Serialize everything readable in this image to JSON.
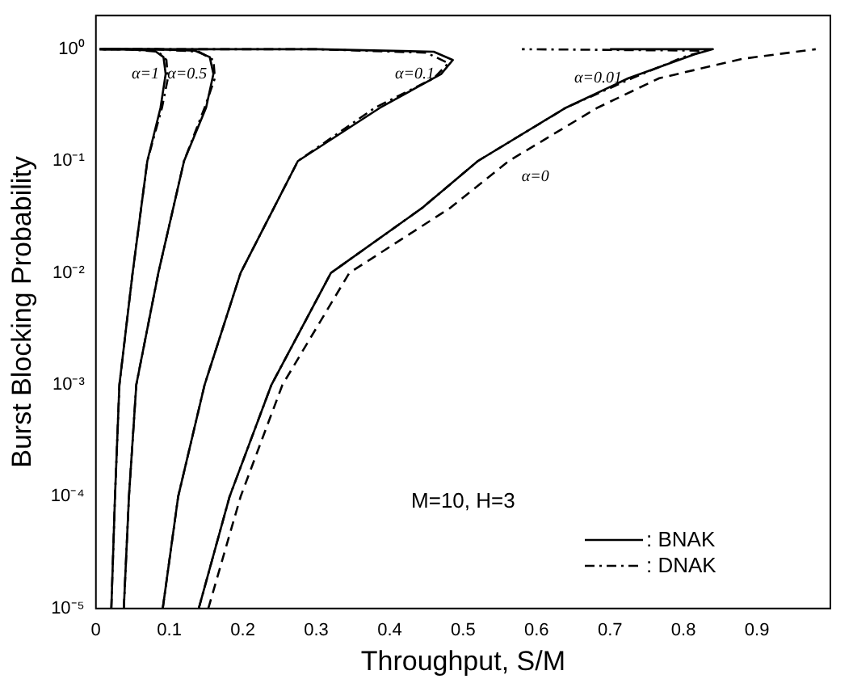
{
  "chart_data": {
    "type": "line",
    "xlabel": "Throughput, S/M",
    "ylabel": "Burst Blocking Probability",
    "log": "y",
    "xlim": [
      0,
      1
    ],
    "ylim": [
      1e-05,
      2
    ],
    "xticks": [
      0,
      0.1,
      0.2,
      0.3,
      0.4,
      0.5,
      0.6,
      0.7,
      0.8,
      0.9
    ],
    "yticks": [
      {
        "value": 1e-05,
        "label": "10⁻⁵"
      },
      {
        "value": 0.0001,
        "label": "10⁻⁴"
      },
      {
        "value": 0.001,
        "label": "10⁻³"
      },
      {
        "value": 0.01,
        "label": "10⁻²"
      },
      {
        "value": 0.1,
        "label": "10⁻¹"
      },
      {
        "value": 1,
        "label": "10⁰"
      }
    ],
    "grid": false,
    "legend": "bottom right",
    "marker": "none",
    "series": [
      {
        "name": ": BNAK",
        "color": "#000000",
        "line_style": "solid",
        "x": [
          0.021,
          0.026,
          0.032,
          0.05,
          0.07,
          0.088,
          0.095,
          0.092,
          0.08,
          0.04,
          0.005
        ],
        "values": [
          1e-05,
          0.0001,
          0.001,
          0.01,
          0.1,
          0.3,
          0.6,
          0.85,
          0.97,
          1,
          1
        ]
      },
      {
        "name": ": DNAK",
        "color": "#000000",
        "line_style": "dashdot",
        "x": [
          0.021,
          0.026,
          0.032,
          0.05,
          0.07,
          0.09,
          0.098,
          0.096,
          0.085,
          0.04,
          0.005
        ],
        "values": [
          1e-05,
          0.0001,
          0.001,
          0.01,
          0.1,
          0.3,
          0.55,
          0.8,
          0.95,
          1,
          1
        ]
      },
      {
        "color": "#000000",
        "line_style": "solid",
        "x": [
          0.038,
          0.045,
          0.055,
          0.085,
          0.12,
          0.15,
          0.16,
          0.155,
          0.135,
          0.08,
          0.005
        ],
        "values": [
          1e-05,
          0.0001,
          0.001,
          0.01,
          0.1,
          0.3,
          0.6,
          0.85,
          0.97,
          1,
          1
        ]
      },
      {
        "color": "#000000",
        "line_style": "dashdot",
        "x": [
          0.038,
          0.045,
          0.055,
          0.085,
          0.12,
          0.148,
          0.162,
          0.16,
          0.14,
          0.08,
          0.005
        ],
        "values": [
          1e-05,
          0.0001,
          0.001,
          0.01,
          0.1,
          0.3,
          0.55,
          0.8,
          0.95,
          1,
          1
        ]
      },
      {
        "color": "#000000",
        "line_style": "solid",
        "x": [
          0.091,
          0.112,
          0.148,
          0.197,
          0.275,
          0.387,
          0.47,
          0.486,
          0.46,
          0.3,
          0.005
        ],
        "values": [
          1e-05,
          0.0001,
          0.001,
          0.01,
          0.1,
          0.3,
          0.6,
          0.8,
          0.95,
          1,
          1
        ]
      },
      {
        "color": "#000000",
        "line_style": "dashdot",
        "x": [
          0.091,
          0.112,
          0.148,
          0.197,
          0.275,
          0.38,
          0.46,
          0.48,
          0.45,
          0.3,
          0.005
        ],
        "values": [
          1e-05,
          0.0001,
          0.001,
          0.01,
          0.1,
          0.3,
          0.55,
          0.75,
          0.93,
          1,
          1
        ]
      },
      {
        "color": "#000000",
        "line_style": "solid",
        "x": [
          0.14,
          0.182,
          0.239,
          0.32,
          0.444,
          0.52,
          0.64,
          0.725,
          0.815,
          0.84,
          0.7
        ],
        "values": [
          1e-05,
          0.0001,
          0.001,
          0.01,
          0.038,
          0.1,
          0.3,
          0.55,
          0.9,
          1,
          1
        ]
      },
      {
        "color": "#000000",
        "line_style": "dashdot",
        "x": [
          0.14,
          0.182,
          0.239,
          0.32,
          0.444,
          0.52,
          0.64,
          0.73,
          0.8,
          0.83,
          0.58
        ],
        "values": [
          1e-05,
          0.0001,
          0.001,
          0.01,
          0.038,
          0.1,
          0.3,
          0.55,
          0.85,
          0.97,
          1
        ]
      },
      {
        "color": "#000000",
        "line_style": "dashed",
        "x": [
          0.153,
          0.197,
          0.254,
          0.345,
          0.482,
          0.562,
          0.683,
          0.767,
          0.88,
          0.98
        ],
        "values": [
          1e-05,
          0.0001,
          0.001,
          0.01,
          0.038,
          0.1,
          0.3,
          0.55,
          0.82,
          1
        ]
      }
    ],
    "annotations": [
      {
        "text": "α=1",
        "x": 0.095,
        "y": 0.6
      },
      {
        "text": "α=0.5",
        "x": 0.16,
        "y": 0.6
      },
      {
        "text": "α=0.1",
        "x": 0.47,
        "y": 0.6
      },
      {
        "text": "α=0.01",
        "x": 0.725,
        "y": 0.55
      },
      {
        "text": "α=0",
        "x": 0.562,
        "y": 0.1
      },
      "M=10, H=3"
    ]
  }
}
